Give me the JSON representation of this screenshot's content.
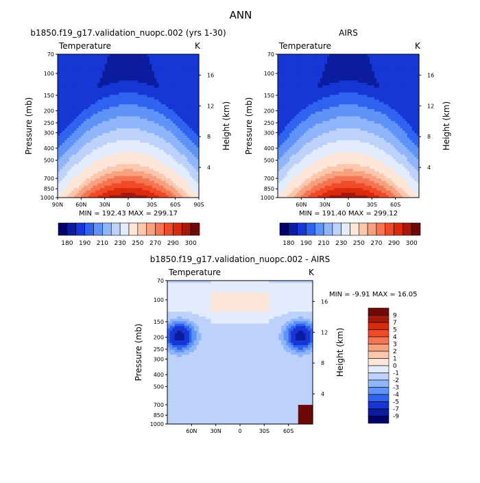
{
  "page_title": "ANN",
  "colors": {
    "temperature_scale": [
      "#03046b",
      "#0b1d9e",
      "#1636d6",
      "#2f63f0",
      "#5f93f7",
      "#8fb5fa",
      "#bcd2fb",
      "#e2ecfd",
      "#fde6d8",
      "#fbc7ad",
      "#f8a17f",
      "#f57552",
      "#f04a28",
      "#d92a0c",
      "#a5180a",
      "#700808"
    ],
    "difference_scale": [
      "#03046b",
      "#0b1d9e",
      "#1636d6",
      "#2f63f0",
      "#5f93f7",
      "#8fb5fa",
      "#bcd2fb",
      "#e2ecfd",
      "#fde6d8",
      "#fbc7ad",
      "#f8a17f",
      "#f57552",
      "#f04a28",
      "#d92a0c",
      "#a5180a",
      "#700808"
    ]
  },
  "chart_data": [
    {
      "type": "heatmap",
      "title": "b1850.f19_g17.validation_nuopc.002 (yrs 1-30)",
      "subtitle_left": "Temperature",
      "subtitle_right": "K",
      "xlabel": "",
      "ylabel": "Pressure (mb)",
      "y2label": "Height (km)",
      "x_ticks": [
        "90N",
        "60N",
        "30N",
        "0",
        "30S",
        "60S",
        "90S"
      ],
      "y_ticks": [
        "70",
        "100",
        "150",
        "200",
        "250",
        "300",
        "400",
        "500",
        "700",
        "850",
        "1000"
      ],
      "y2_ticks": [
        "16",
        "12",
        "8",
        "4"
      ],
      "min_max": "MIN = 192.43   MAX = 299.17",
      "min": 192.43,
      "max": 299.17,
      "colorbar_labels": [
        "180",
        "190",
        "210",
        "230",
        "250",
        "270",
        "290",
        "300"
      ]
    },
    {
      "type": "heatmap",
      "title": "AIRS",
      "subtitle_left": "Temperature",
      "subtitle_right": "K",
      "xlabel": "",
      "ylabel": "Pressure (mb)",
      "y2label": "Height (km)",
      "x_ticks": [
        "60N",
        "30N",
        "0",
        "30S",
        "60S"
      ],
      "y_ticks": [
        "70",
        "100",
        "150",
        "200",
        "250",
        "300",
        "400",
        "500",
        "700",
        "850",
        "1000"
      ],
      "y2_ticks": [
        "16",
        "12",
        "8",
        "4"
      ],
      "min_max": "MIN = 191.40   MAX = 299.12",
      "min": 191.4,
      "max": 299.12,
      "colorbar_labels": [
        "180",
        "190",
        "210",
        "230",
        "250",
        "270",
        "290",
        "300"
      ]
    },
    {
      "type": "heatmap",
      "title": "b1850.f19_g17.validation_nuopc.002 - AIRS",
      "subtitle_left": "Temperature",
      "subtitle_right": "K",
      "xlabel": "",
      "ylabel": "Pressure (mb)",
      "y2label": "Height (km)",
      "x_ticks": [
        "60N",
        "30N",
        "0",
        "30S",
        "60S"
      ],
      "y_ticks": [
        "70",
        "100",
        "150",
        "200",
        "250",
        "300",
        "400",
        "500",
        "700",
        "850",
        "1000"
      ],
      "y2_ticks": [
        "16",
        "12",
        "8",
        "4"
      ],
      "min_max": "MIN =   -9.91   MAX =   16.05",
      "min": -9.91,
      "max": 16.05,
      "colorbar_labels": [
        "9",
        "7",
        "5",
        "4",
        "3",
        "2",
        "1",
        "0",
        "-1",
        "-2",
        "-3",
        "-4",
        "-5",
        "-7",
        "-9"
      ]
    }
  ]
}
